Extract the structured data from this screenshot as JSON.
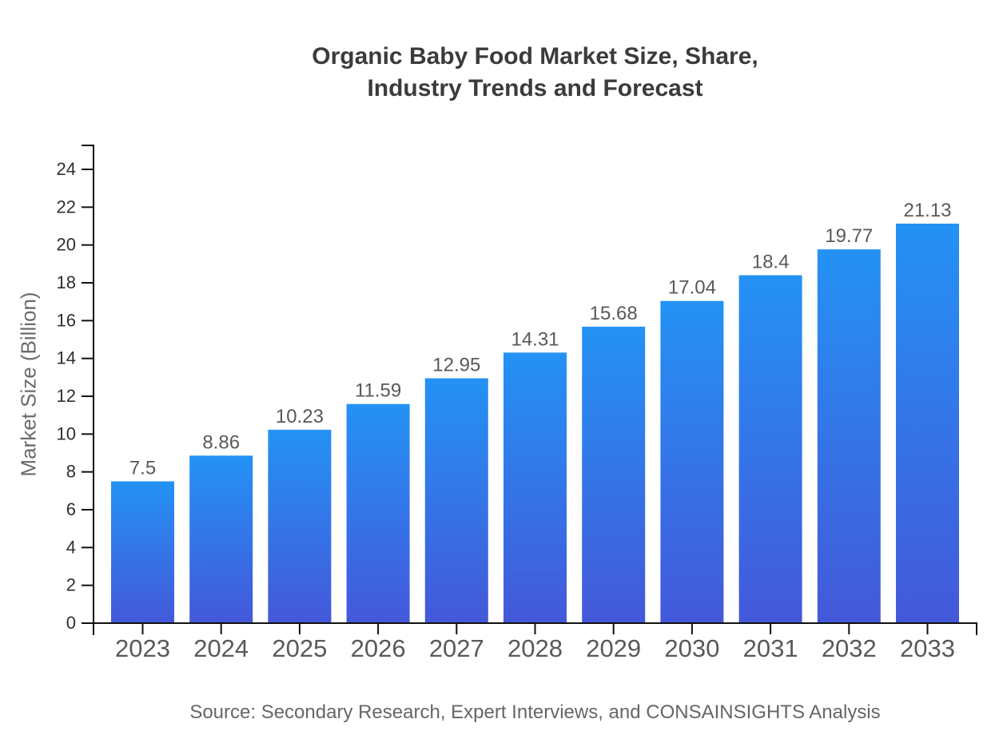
{
  "chart_data": {
    "type": "bar",
    "title_lines": [
      "Organic Baby Food Market Size, Share,",
      "Industry Trends and Forecast"
    ],
    "ylabel": "Market Size (Billion)",
    "xlabel": "",
    "categories": [
      "2023",
      "2024",
      "2025",
      "2026",
      "2027",
      "2028",
      "2029",
      "2030",
      "2031",
      "2032",
      "2033"
    ],
    "values": [
      7.5,
      8.86,
      10.23,
      11.59,
      12.95,
      14.31,
      15.68,
      17.04,
      18.4,
      19.77,
      21.13
    ],
    "value_labels": [
      "7.5",
      "8.86",
      "10.23",
      "11.59",
      "12.95",
      "14.31",
      "15.68",
      "17.04",
      "18.4",
      "19.77",
      "21.13"
    ],
    "y_ticks": [
      0,
      2,
      4,
      6,
      8,
      10,
      12,
      14,
      16,
      18,
      20,
      22,
      24
    ],
    "ylim": [
      0,
      25.3
    ],
    "grid": false,
    "legend": null,
    "colors": {
      "bar_gradient_top": "#2492f4",
      "bar_gradient_bottom": "#4458da",
      "axis": "#111111",
      "value_label": "#595959",
      "x_tick_label": "#595959",
      "y_tick_label": "#2f2f2f",
      "title": "#3b3b3b",
      "y_axis_title": "#6b6b6b",
      "source": "#666666"
    }
  },
  "source_note": "Source: Secondary Research, Expert Interviews, and CONSAINSIGHTS Analysis"
}
